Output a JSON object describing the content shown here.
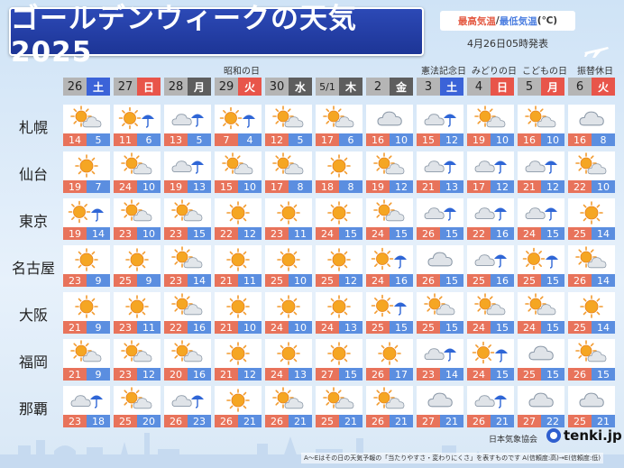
{
  "title": "ゴールデンウィークの天気 2025",
  "legend": {
    "high": "最高気温",
    "sep": "/",
    "low": "最低気温",
    "unit": "(℃)"
  },
  "issued": "4月26日05時発表",
  "holidays": [
    {
      "col": 3,
      "label": "昭和の日"
    },
    {
      "col": 7,
      "label": "憲法記念日"
    },
    {
      "col": 8,
      "label": "みどりの日"
    },
    {
      "col": 9,
      "label": "こどもの日"
    },
    {
      "col": 10,
      "label": "振替休日"
    }
  ],
  "days": [
    {
      "date": "26",
      "dow": "土",
      "type": "sat"
    },
    {
      "date": "27",
      "dow": "日",
      "type": "sun"
    },
    {
      "date": "28",
      "dow": "月",
      "type": "wk"
    },
    {
      "date": "29",
      "dow": "火",
      "type": "sun"
    },
    {
      "date": "30",
      "dow": "水",
      "type": "wk"
    },
    {
      "date": "5/1",
      "dow": "木",
      "type": "wk"
    },
    {
      "date": "2",
      "dow": "金",
      "type": "wk"
    },
    {
      "date": "3",
      "dow": "土",
      "type": "sat"
    },
    {
      "date": "4",
      "dow": "日",
      "type": "sun"
    },
    {
      "date": "5",
      "dow": "月",
      "type": "sun"
    },
    {
      "date": "6",
      "dow": "火",
      "type": "sun"
    }
  ],
  "cities": [
    {
      "name": "札幌",
      "icons": [
        "sun-cloud-icon",
        "sun-rain-icon",
        "cloud-rain-icon",
        "sun-rain-icon",
        "sun-cloud-icon",
        "sun-cloud-icon",
        "cloud-icon",
        "cloud-rain-icon",
        "sun-cloud-icon",
        "sun-cloud-icon",
        "cloud-icon"
      ],
      "temps": [
        [
          "14",
          "5"
        ],
        [
          "11",
          "6"
        ],
        [
          "13",
          "5"
        ],
        [
          "7",
          "4"
        ],
        [
          "12",
          "5"
        ],
        [
          "17",
          "6"
        ],
        [
          "16",
          "10"
        ],
        [
          "15",
          "12"
        ],
        [
          "19",
          "10"
        ],
        [
          "16",
          "10"
        ],
        [
          "16",
          "8"
        ]
      ]
    },
    {
      "name": "仙台",
      "icons": [
        "sun-icon",
        "sun-cloud-icon",
        "cloud-rain-icon",
        "sun-cloud-icon",
        "sun-cloud-icon",
        "sun-icon",
        "sun-cloud-icon",
        "cloud-rain-icon",
        "cloud-rain-icon",
        "cloud-rain-icon",
        "sun-cloud-icon"
      ],
      "temps": [
        [
          "19",
          "7"
        ],
        [
          "24",
          "10"
        ],
        [
          "19",
          "13"
        ],
        [
          "15",
          "10"
        ],
        [
          "17",
          "8"
        ],
        [
          "18",
          "8"
        ],
        [
          "19",
          "12"
        ],
        [
          "21",
          "13"
        ],
        [
          "17",
          "12"
        ],
        [
          "21",
          "12"
        ],
        [
          "22",
          "10"
        ]
      ]
    },
    {
      "name": "東京",
      "icons": [
        "sun-rain-icon",
        "sun-cloud-icon",
        "sun-cloud-icon",
        "sun-icon",
        "sun-icon",
        "sun-icon",
        "sun-cloud-icon",
        "cloud-rain-icon",
        "cloud-rain-icon",
        "cloud-rain-icon",
        "sun-icon"
      ],
      "temps": [
        [
          "19",
          "14"
        ],
        [
          "23",
          "10"
        ],
        [
          "23",
          "15"
        ],
        [
          "22",
          "12"
        ],
        [
          "23",
          "11"
        ],
        [
          "24",
          "15"
        ],
        [
          "24",
          "15"
        ],
        [
          "26",
          "15"
        ],
        [
          "22",
          "16"
        ],
        [
          "24",
          "15"
        ],
        [
          "25",
          "14"
        ]
      ]
    },
    {
      "name": "名古屋",
      "icons": [
        "sun-icon",
        "sun-icon",
        "sun-cloud-icon",
        "sun-icon",
        "sun-icon",
        "sun-icon",
        "sun-rain-icon",
        "cloud-icon",
        "cloud-rain-icon",
        "sun-rain-icon",
        "sun-cloud-icon"
      ],
      "temps": [
        [
          "23",
          "9"
        ],
        [
          "25",
          "9"
        ],
        [
          "23",
          "14"
        ],
        [
          "21",
          "11"
        ],
        [
          "25",
          "10"
        ],
        [
          "25",
          "12"
        ],
        [
          "24",
          "16"
        ],
        [
          "26",
          "15"
        ],
        [
          "25",
          "16"
        ],
        [
          "25",
          "15"
        ],
        [
          "26",
          "14"
        ]
      ]
    },
    {
      "name": "大阪",
      "icons": [
        "sun-icon",
        "sun-icon",
        "sun-cloud-icon",
        "sun-icon",
        "sun-icon",
        "sun-icon",
        "sun-rain-icon",
        "sun-cloud-icon",
        "sun-cloud-icon",
        "sun-cloud-icon",
        "sun-icon"
      ],
      "temps": [
        [
          "21",
          "9"
        ],
        [
          "23",
          "11"
        ],
        [
          "22",
          "16"
        ],
        [
          "21",
          "10"
        ],
        [
          "24",
          "10"
        ],
        [
          "24",
          "13"
        ],
        [
          "25",
          "15"
        ],
        [
          "25",
          "15"
        ],
        [
          "24",
          "15"
        ],
        [
          "24",
          "15"
        ],
        [
          "25",
          "14"
        ]
      ]
    },
    {
      "name": "福岡",
      "icons": [
        "sun-cloud-icon",
        "sun-cloud-icon",
        "sun-cloud-icon",
        "sun-icon",
        "sun-icon",
        "sun-icon",
        "sun-icon",
        "cloud-rain-icon",
        "sun-rain-icon",
        "cloud-icon",
        "sun-cloud-icon"
      ],
      "temps": [
        [
          "21",
          "9"
        ],
        [
          "23",
          "12"
        ],
        [
          "20",
          "16"
        ],
        [
          "21",
          "12"
        ],
        [
          "24",
          "13"
        ],
        [
          "27",
          "15"
        ],
        [
          "26",
          "17"
        ],
        [
          "23",
          "14"
        ],
        [
          "24",
          "15"
        ],
        [
          "25",
          "15"
        ],
        [
          "26",
          "15"
        ]
      ]
    },
    {
      "name": "那覇",
      "icons": [
        "cloud-rain-icon",
        "sun-cloud-icon",
        "cloud-rain-icon",
        "sun-icon",
        "sun-cloud-icon",
        "sun-cloud-icon",
        "sun-cloud-icon",
        "cloud-icon",
        "cloud-rain-icon",
        "cloud-icon",
        "cloud-icon"
      ],
      "temps": [
        [
          "23",
          "18"
        ],
        [
          "25",
          "20"
        ],
        [
          "26",
          "23"
        ],
        [
          "26",
          "21"
        ],
        [
          "26",
          "21"
        ],
        [
          "25",
          "21"
        ],
        [
          "26",
          "21"
        ],
        [
          "27",
          "21"
        ],
        [
          "26",
          "21"
        ],
        [
          "27",
          "22"
        ],
        [
          "25",
          "21"
        ]
      ]
    }
  ],
  "footer": {
    "org": "日本気象協会",
    "brand": "tenki.jp",
    "note": "A〜Eはその日の天気予報の「当たりやすさ・変わりにくさ」を表すものです A(信頼度:高)→E(信頼度:低)"
  },
  "colors": {
    "title_bg": "#2c49b6",
    "high": "#e8735b",
    "low": "#5b8ee0",
    "sat": "#3b63d8",
    "sun": "#e8554a"
  }
}
